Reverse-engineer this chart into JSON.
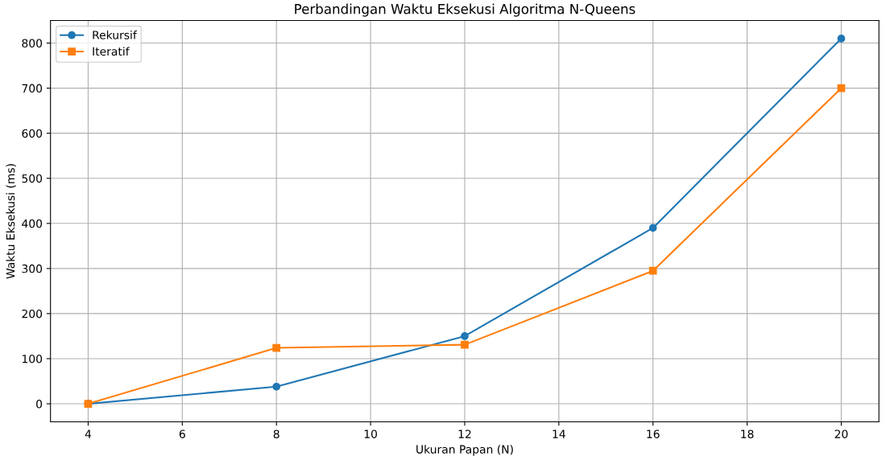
{
  "chart_data": {
    "type": "line",
    "title": "Perbandingan Waktu Eksekusi Algoritma N-Queens",
    "xlabel": "Ukuran Papan (N)",
    "ylabel": "Waktu Eksekusi (ms)",
    "x": [
      4,
      8,
      12,
      16,
      20
    ],
    "series": [
      {
        "name": "Rekursif",
        "color": "#1f77b4",
        "marker": "circle",
        "values": [
          0,
          38,
          150,
          390,
          810
        ]
      },
      {
        "name": "Iteratif",
        "color": "#ff7f0e",
        "marker": "square",
        "values": [
          0,
          124,
          131,
          295,
          700
        ]
      }
    ],
    "xlim": [
      3.2,
      20.8
    ],
    "xticks": [
      4,
      6,
      8,
      10,
      12,
      14,
      16,
      18,
      20
    ],
    "ylim": [
      -40,
      850
    ],
    "yticks": [
      0,
      100,
      200,
      300,
      400,
      500,
      600,
      700,
      800
    ],
    "grid": true,
    "legend": "top left",
    "line_style": "solid"
  }
}
